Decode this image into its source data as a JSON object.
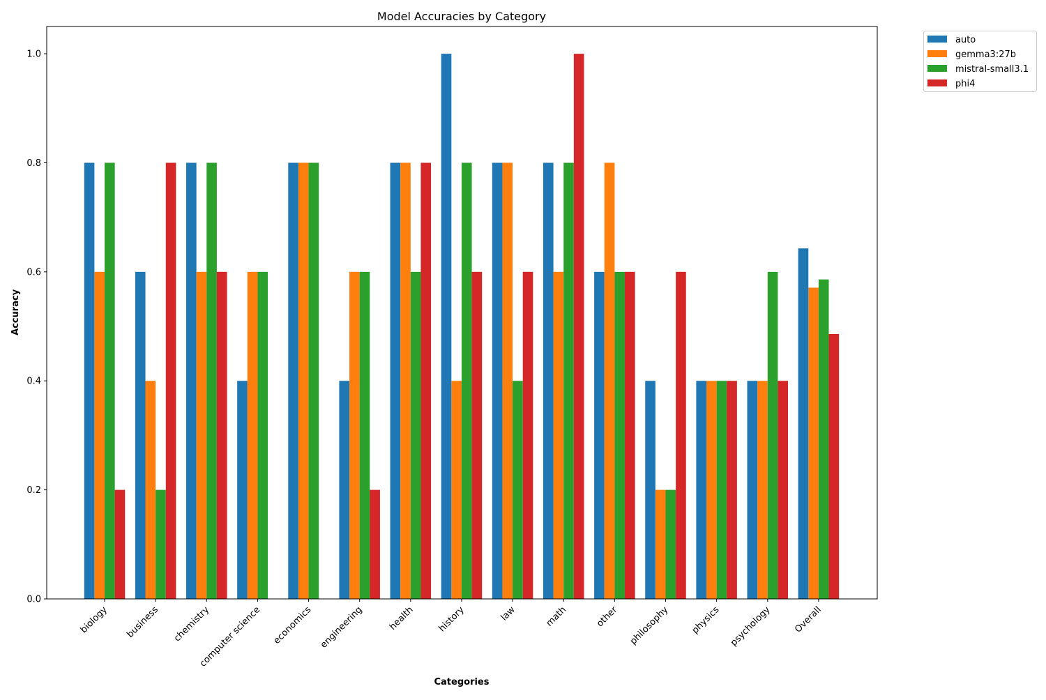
{
  "chart_data": {
    "type": "bar",
    "title": "Model Accuracies by Category",
    "xlabel": "Categories",
    "ylabel": "Accuracy",
    "categories": [
      "biology",
      "business",
      "chemistry",
      "computer science",
      "economics",
      "engineering",
      "health",
      "history",
      "law",
      "math",
      "other",
      "philosophy",
      "physics",
      "psychology",
      "Overall"
    ],
    "series": [
      {
        "name": "auto",
        "color": "#1f77b4",
        "values": [
          0.8,
          0.6,
          0.8,
          0.4,
          0.8,
          0.4,
          0.8,
          1.0,
          0.8,
          0.8,
          0.6,
          0.4,
          0.4,
          0.4,
          0.643
        ]
      },
      {
        "name": "gemma3:27b",
        "color": "#ff7f0e",
        "values": [
          0.6,
          0.4,
          0.6,
          0.6,
          0.8,
          0.6,
          0.8,
          0.4,
          0.8,
          0.6,
          0.8,
          0.2,
          0.4,
          0.4,
          0.571
        ]
      },
      {
        "name": "mistral-small3.1",
        "color": "#2ca02c",
        "values": [
          0.8,
          0.2,
          0.8,
          0.6,
          0.8,
          0.6,
          0.6,
          0.8,
          0.4,
          0.8,
          0.6,
          0.2,
          0.4,
          0.6,
          0.586
        ]
      },
      {
        "name": "phi4",
        "color": "#d62728",
        "values": [
          0.2,
          0.8,
          0.6,
          0.0,
          0.0,
          0.2,
          0.8,
          0.6,
          0.6,
          1.0,
          0.6,
          0.6,
          0.4,
          0.4,
          0.486
        ]
      }
    ],
    "yticks": [
      "0.0",
      "0.2",
      "0.4",
      "0.6",
      "0.8",
      "1.0"
    ],
    "ylim": [
      0,
      1.05
    ],
    "grid": false,
    "legend_placement": "outside-top-right"
  }
}
